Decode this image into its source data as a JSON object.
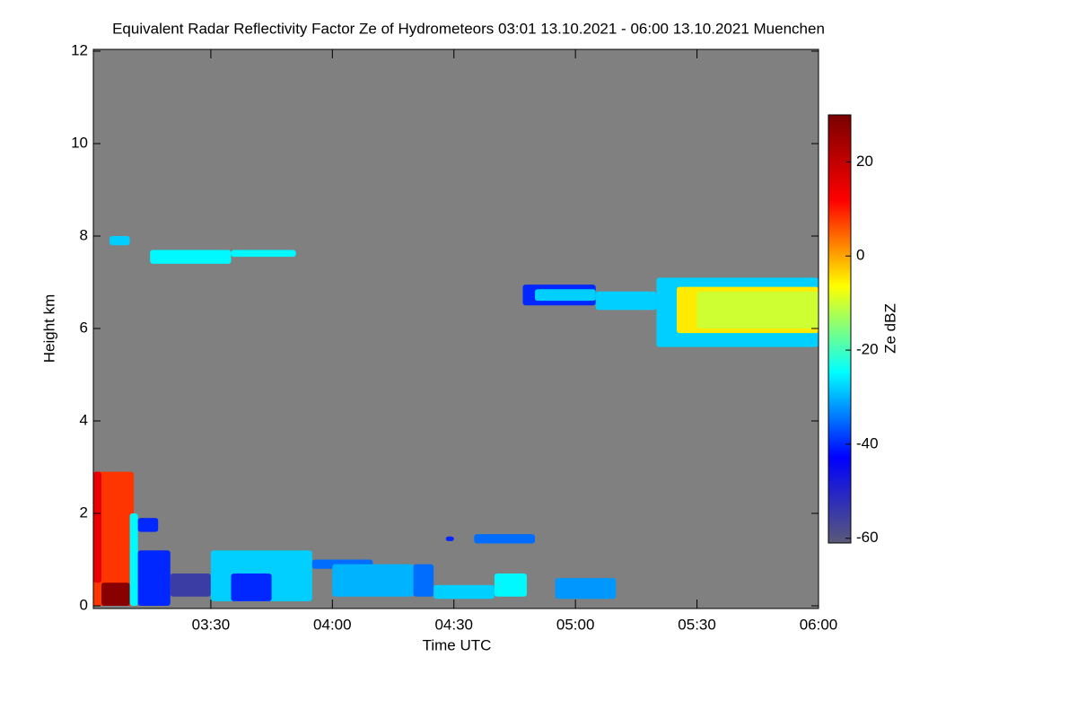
{
  "chart_data": {
    "type": "radar-time-height",
    "title": "Equivalent Radar Reflectivity Factor Ze of Hydrometeors   03:01 13.10.2021 - 06:00 13.10.2021 Muenchen",
    "x_label": "Time UTC",
    "y_label": "Height km",
    "colorbar_label": "Ze dBZ",
    "xlim": [
      "03:01",
      "06:00"
    ],
    "xticks": [
      "03:30",
      "04:00",
      "04:30",
      "05:00",
      "05:30",
      "06:00"
    ],
    "ylim": [
      0,
      12
    ],
    "yticks": [
      0,
      2,
      4,
      6,
      8,
      10,
      12
    ],
    "clim": [
      -61,
      30
    ],
    "cticks": [
      20,
      0,
      -20,
      -40,
      -60
    ],
    "background": "#808080",
    "colormap": [
      "#5a5a78",
      "#0000ff",
      "#00ffff",
      "#ffff00",
      "#ff0000",
      "#7a0000"
    ],
    "echoes": [
      {
        "x": [
          "03:01",
          "03:11"
        ],
        "y": [
          0,
          2.9
        ],
        "value": 8
      },
      {
        "x": [
          "03:01",
          "03:03"
        ],
        "y": [
          0.5,
          2.9
        ],
        "value": 15
      },
      {
        "x": [
          "03:03",
          "03:10"
        ],
        "y": [
          0,
          0.5
        ],
        "value": 28
      },
      {
        "x": [
          "03:10",
          "03:12"
        ],
        "y": [
          0,
          2.0
        ],
        "value": -25
      },
      {
        "x": [
          "03:12",
          "03:17"
        ],
        "y": [
          1.6,
          1.9
        ],
        "value": -40
      },
      {
        "x": [
          "03:12",
          "03:20"
        ],
        "y": [
          0,
          1.2
        ],
        "value": -40
      },
      {
        "x": [
          "03:20",
          "03:30"
        ],
        "y": [
          0.2,
          0.7
        ],
        "value": -55
      },
      {
        "x": [
          "03:30",
          "03:55"
        ],
        "y": [
          0.1,
          1.2
        ],
        "value": -28
      },
      {
        "x": [
          "03:35",
          "03:45"
        ],
        "y": [
          0.1,
          0.7
        ],
        "value": -40
      },
      {
        "x": [
          "03:55",
          "04:10"
        ],
        "y": [
          0.8,
          1.0
        ],
        "value": -35
      },
      {
        "x": [
          "04:00",
          "04:20"
        ],
        "y": [
          0.2,
          0.9
        ],
        "value": -30
      },
      {
        "x": [
          "04:20",
          "04:25"
        ],
        "y": [
          0.2,
          0.9
        ],
        "value": -35
      },
      {
        "x": [
          "04:25",
          "04:40"
        ],
        "y": [
          0.15,
          0.45
        ],
        "value": -28
      },
      {
        "x": [
          "04:40",
          "04:48"
        ],
        "y": [
          0.2,
          0.7
        ],
        "value": -25
      },
      {
        "x": [
          "04:35",
          "04:50"
        ],
        "y": [
          1.35,
          1.55
        ],
        "value": -35
      },
      {
        "x": [
          "04:28",
          "04:30"
        ],
        "y": [
          1.4,
          1.5
        ],
        "value": -40
      },
      {
        "x": [
          "04:55",
          "05:10"
        ],
        "y": [
          0.15,
          0.6
        ],
        "value": -32
      },
      {
        "x": [
          "03:05",
          "03:10"
        ],
        "y": [
          7.8,
          8.0
        ],
        "value": -28
      },
      {
        "x": [
          "03:15",
          "03:35"
        ],
        "y": [
          7.4,
          7.7
        ],
        "value": -25
      },
      {
        "x": [
          "03:35",
          "03:51"
        ],
        "y": [
          7.55,
          7.7
        ],
        "value": -25
      },
      {
        "x": [
          "04:47",
          "05:05"
        ],
        "y": [
          6.5,
          6.95
        ],
        "value": -40
      },
      {
        "x": [
          "04:50",
          "05:05"
        ],
        "y": [
          6.6,
          6.85
        ],
        "value": -28
      },
      {
        "x": [
          "05:05",
          "05:20"
        ],
        "y": [
          6.4,
          6.8
        ],
        "value": -28
      },
      {
        "x": [
          "05:20",
          "06:00"
        ],
        "y": [
          5.6,
          7.1
        ],
        "value": -28
      },
      {
        "x": [
          "05:25",
          "06:00"
        ],
        "y": [
          5.9,
          6.9
        ],
        "value": -5
      },
      {
        "x": [
          "05:30",
          "06:00"
        ],
        "y": [
          6.0,
          6.8
        ],
        "value": -10
      }
    ]
  }
}
